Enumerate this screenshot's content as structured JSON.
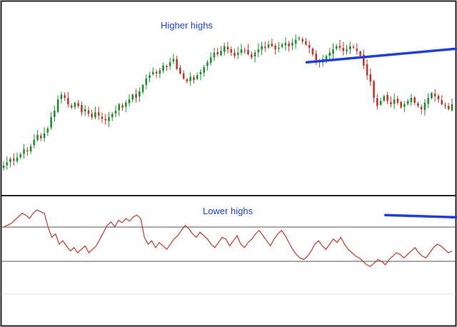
{
  "colors": {
    "bull": "#1e8f2e",
    "bear": "#c0392b",
    "indicator": "#c0392b",
    "trendline": "#1f3fd9",
    "annotation_text": "#1f3fd9",
    "level_line": "#555555",
    "frame": "#222222"
  },
  "chart_data": [
    {
      "type": "candlestick",
      "title": "",
      "xlabel": "",
      "ylabel": "",
      "ylim": [
        0,
        100
      ],
      "annotation": {
        "text": "Higher highs",
        "line": [
          [
            105,
            72
          ],
          [
            199,
            90
          ]
        ]
      },
      "closes": [
        8,
        10,
        12,
        11,
        13,
        15,
        18,
        17,
        20,
        24,
        27,
        25,
        28,
        31,
        38,
        42,
        49,
        52,
        50,
        46,
        44,
        47,
        45,
        41,
        43,
        40,
        38,
        41,
        39,
        37,
        36,
        38,
        40,
        42,
        46,
        44,
        47,
        49,
        52,
        50,
        54,
        58,
        62,
        64,
        66,
        65,
        67,
        70,
        69,
        72,
        74,
        68,
        65,
        62,
        60,
        63,
        61,
        64,
        66,
        69,
        72,
        75,
        78,
        77,
        79,
        82,
        80,
        78,
        76,
        78,
        80,
        79,
        77,
        75,
        78,
        80,
        82,
        81,
        83,
        82,
        80,
        81,
        83,
        84,
        82,
        84,
        86,
        87,
        85,
        83,
        81,
        77,
        73,
        72,
        74,
        76,
        78,
        80,
        82,
        81,
        79,
        80,
        82,
        81,
        79,
        76,
        70,
        64,
        60,
        50,
        45,
        48,
        51,
        48,
        46,
        49,
        47,
        44,
        46,
        48,
        50,
        47,
        45,
        43,
        47,
        50,
        53,
        51,
        49,
        46,
        45,
        43,
        46
      ]
    },
    {
      "type": "line",
      "title": "",
      "xlabel": "",
      "ylabel": "",
      "ylim": [
        0,
        100
      ],
      "levels": [
        70,
        30
      ],
      "annotation": {
        "text": "Lower highs",
        "line": [
          [
            104,
            84
          ],
          [
            206,
            70
          ]
        ]
      },
      "values": [
        70,
        72,
        74,
        78,
        82,
        86,
        84,
        80,
        86,
        90,
        88,
        86,
        70,
        58,
        62,
        50,
        54,
        48,
        42,
        46,
        40,
        44,
        48,
        40,
        44,
        48,
        56,
        64,
        72,
        76,
        70,
        78,
        75,
        80,
        77,
        82,
        84,
        80,
        58,
        50,
        54,
        46,
        52,
        48,
        44,
        50,
        56,
        60,
        66,
        72,
        68,
        62,
        58,
        64,
        60,
        56,
        50,
        46,
        52,
        58,
        56,
        48,
        54,
        60,
        50,
        46,
        52,
        56,
        62,
        66,
        60,
        54,
        48,
        56,
        62,
        66,
        60,
        52,
        44,
        38,
        34,
        32,
        36,
        42,
        50,
        54,
        48,
        44,
        50,
        56,
        52,
        58,
        50,
        44,
        40,
        36,
        34,
        30,
        26,
        24,
        28,
        32,
        30,
        26,
        32,
        36,
        40,
        38,
        34,
        38,
        42,
        46,
        40,
        36,
        34,
        40,
        46,
        50,
        48,
        44,
        40,
        42
      ]
    }
  ],
  "annotations": {
    "higher_highs": "Higher highs",
    "lower_highs": "Lower highs"
  }
}
